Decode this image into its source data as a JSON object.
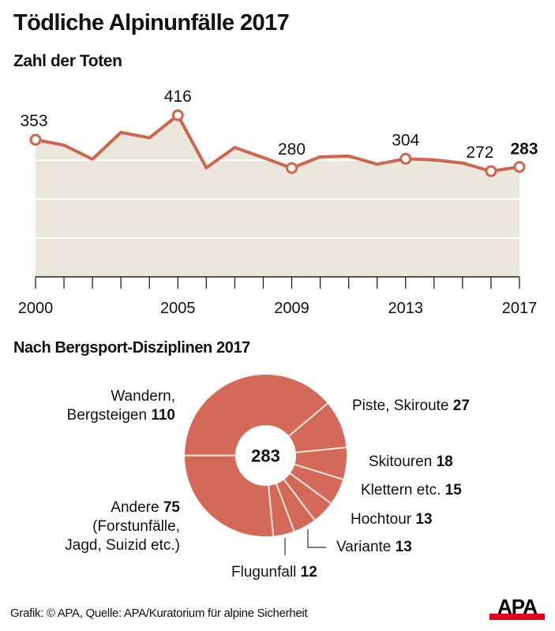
{
  "title": "Tödliche Alpinunfälle 2017",
  "colors": {
    "line": "#D0654F",
    "area_fill": "#ECE7DD",
    "gridline": "#FFFFFF",
    "pie": "#D4695A",
    "pie_separator": "#F3E9DA",
    "axis": "#222222",
    "logo_red": "#E3001B"
  },
  "chart_data": [
    {
      "type": "area",
      "title": "Zahl der Toten",
      "xlabel": "",
      "ylabel": "",
      "x": [
        2000,
        2001,
        2002,
        2003,
        2004,
        2005,
        2006,
        2007,
        2008,
        2009,
        2010,
        2011,
        2012,
        2013,
        2014,
        2015,
        2016,
        2017
      ],
      "values": [
        353,
        339,
        303,
        372,
        358,
        416,
        281,
        333,
        307,
        280,
        309,
        311,
        290,
        304,
        301,
        293,
        272,
        283
      ],
      "xlim": [
        2000,
        2017
      ],
      "ylim": [
        0,
        420
      ],
      "yticks_gridlines": [
        100,
        200,
        300
      ],
      "grid": true,
      "x_tick_labels": [
        "2000",
        "2005",
        "2009",
        "2013",
        "2017"
      ],
      "labeled_points": [
        {
          "year": 2000,
          "label": "353",
          "bold": false
        },
        {
          "year": 2005,
          "label": "416",
          "bold": false
        },
        {
          "year": 2009,
          "label": "280",
          "bold": false
        },
        {
          "year": 2013,
          "label": "304",
          "bold": false
        },
        {
          "year": 2016,
          "label": "272",
          "bold": false
        },
        {
          "year": 2017,
          "label": "283",
          "bold": true
        }
      ]
    },
    {
      "type": "pie",
      "title": "Nach Bergsport-Disziplinen 2017",
      "center_label": "283",
      "donut": true,
      "start": "left",
      "direction": "clockwise",
      "slices": [
        {
          "name": "Wandern, Bergsteigen",
          "value": 110
        },
        {
          "name": "Piste, Skiroute",
          "value": 27
        },
        {
          "name": "Skitouren",
          "value": 18
        },
        {
          "name": "Klettern etc.",
          "value": 15
        },
        {
          "name": "Hochtour",
          "value": 13
        },
        {
          "name": "Variante",
          "value": 13
        },
        {
          "name": "Flugunfall",
          "value": 12
        },
        {
          "name": "Andere",
          "value": 75
        }
      ]
    }
  ],
  "pie_labels": {
    "wandern_line1": "Wandern,",
    "wandern_line2": "Bergsteigen",
    "wandern_value": "110",
    "piste": "Piste, Skiroute",
    "piste_value": "27",
    "skitouren": "Skitouren",
    "skitouren_value": "18",
    "klettern": "Klettern etc.",
    "klettern_value": "15",
    "hochtour": "Hochtour",
    "hochtour_value": "13",
    "variante": "Variante",
    "variante_value": "13",
    "flugunfall": "Flugunfall",
    "flugunfall_value": "12",
    "andere": "Andere",
    "andere_value": "75",
    "andere_line2": "(Forstunfälle,",
    "andere_line3": "Jagd, Suizid etc.)"
  },
  "footer": "Grafik: © APA, Quelle: APA/Kuratorium für alpine Sicherheit",
  "logo_text": "APA"
}
